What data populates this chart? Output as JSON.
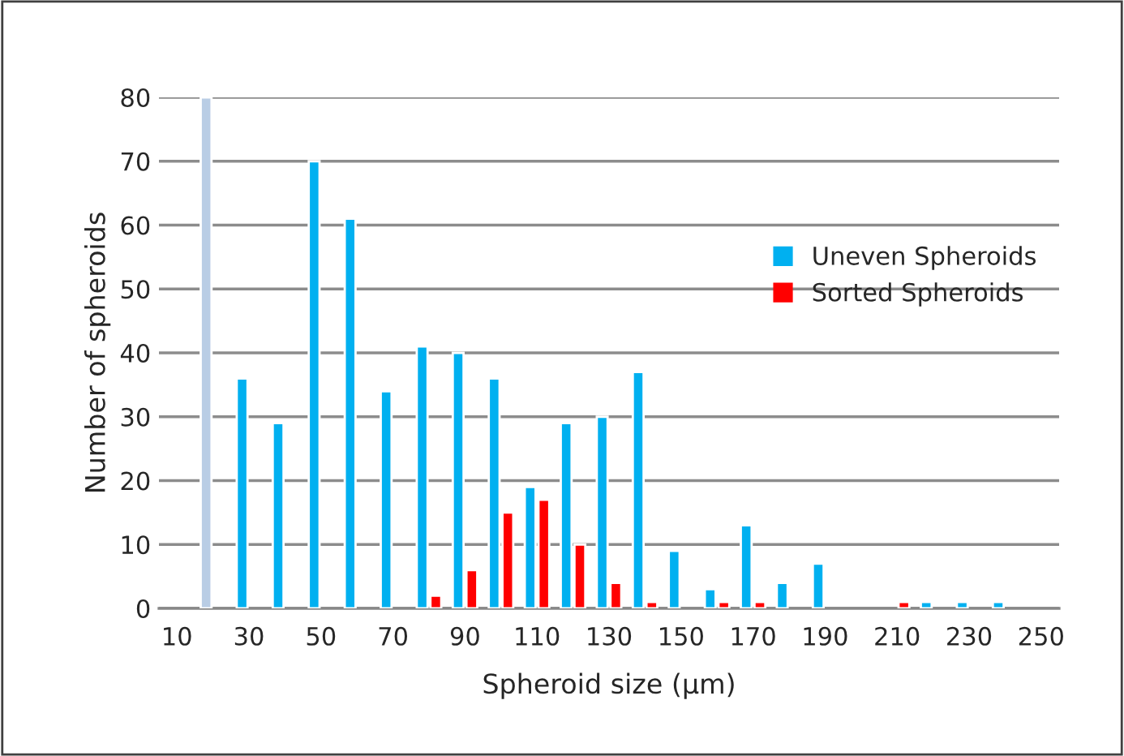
{
  "chart_data": {
    "type": "bar",
    "xlabel": "Spheroid size (µm)",
    "ylabel": "Number of spheroids",
    "categories": [
      "10",
      null,
      "30",
      null,
      "50",
      null,
      "70",
      null,
      "90",
      null,
      "110",
      null,
      "130",
      null,
      "150",
      null,
      "170",
      null,
      "190",
      null,
      "210",
      null,
      "230",
      null,
      "250"
    ],
    "series": [
      {
        "name": "Uneven Spheroids",
        "color": "#00b0f0",
        "colors": [
          "#00b0f0",
          "#b9cde5",
          "#00b0f0",
          "#00b0f0",
          "#00b0f0",
          "#00b0f0",
          "#00b0f0",
          "#00b0f0",
          "#00b0f0",
          "#00b0f0",
          "#00b0f0",
          "#00b0f0",
          "#00b0f0",
          "#00b0f0",
          "#00b0f0",
          "#00b0f0",
          "#00b0f0",
          "#00b0f0",
          "#00b0f0",
          "#00b0f0",
          "#00b0f0",
          "#00b0f0",
          "#00b0f0",
          "#00b0f0",
          "#00b0f0"
        ],
        "values": [
          null,
          80,
          36,
          29,
          70,
          61,
          34,
          41,
          40,
          36,
          19,
          29,
          30,
          37,
          9,
          3,
          13,
          4,
          7,
          null,
          null,
          1,
          1,
          1,
          null
        ]
      },
      {
        "name": "Sorted Spheroids",
        "color": "#ff0000",
        "values": [
          null,
          null,
          null,
          null,
          null,
          null,
          null,
          2,
          6,
          15,
          17,
          10,
          4,
          1,
          null,
          1,
          1,
          null,
          null,
          null,
          1,
          null,
          null,
          null,
          null
        ]
      }
    ],
    "ylim": [
      0,
      80
    ],
    "yticks": [
      0,
      10,
      20,
      30,
      40,
      50,
      60,
      70,
      80
    ],
    "grid": "y",
    "legend": "right"
  }
}
